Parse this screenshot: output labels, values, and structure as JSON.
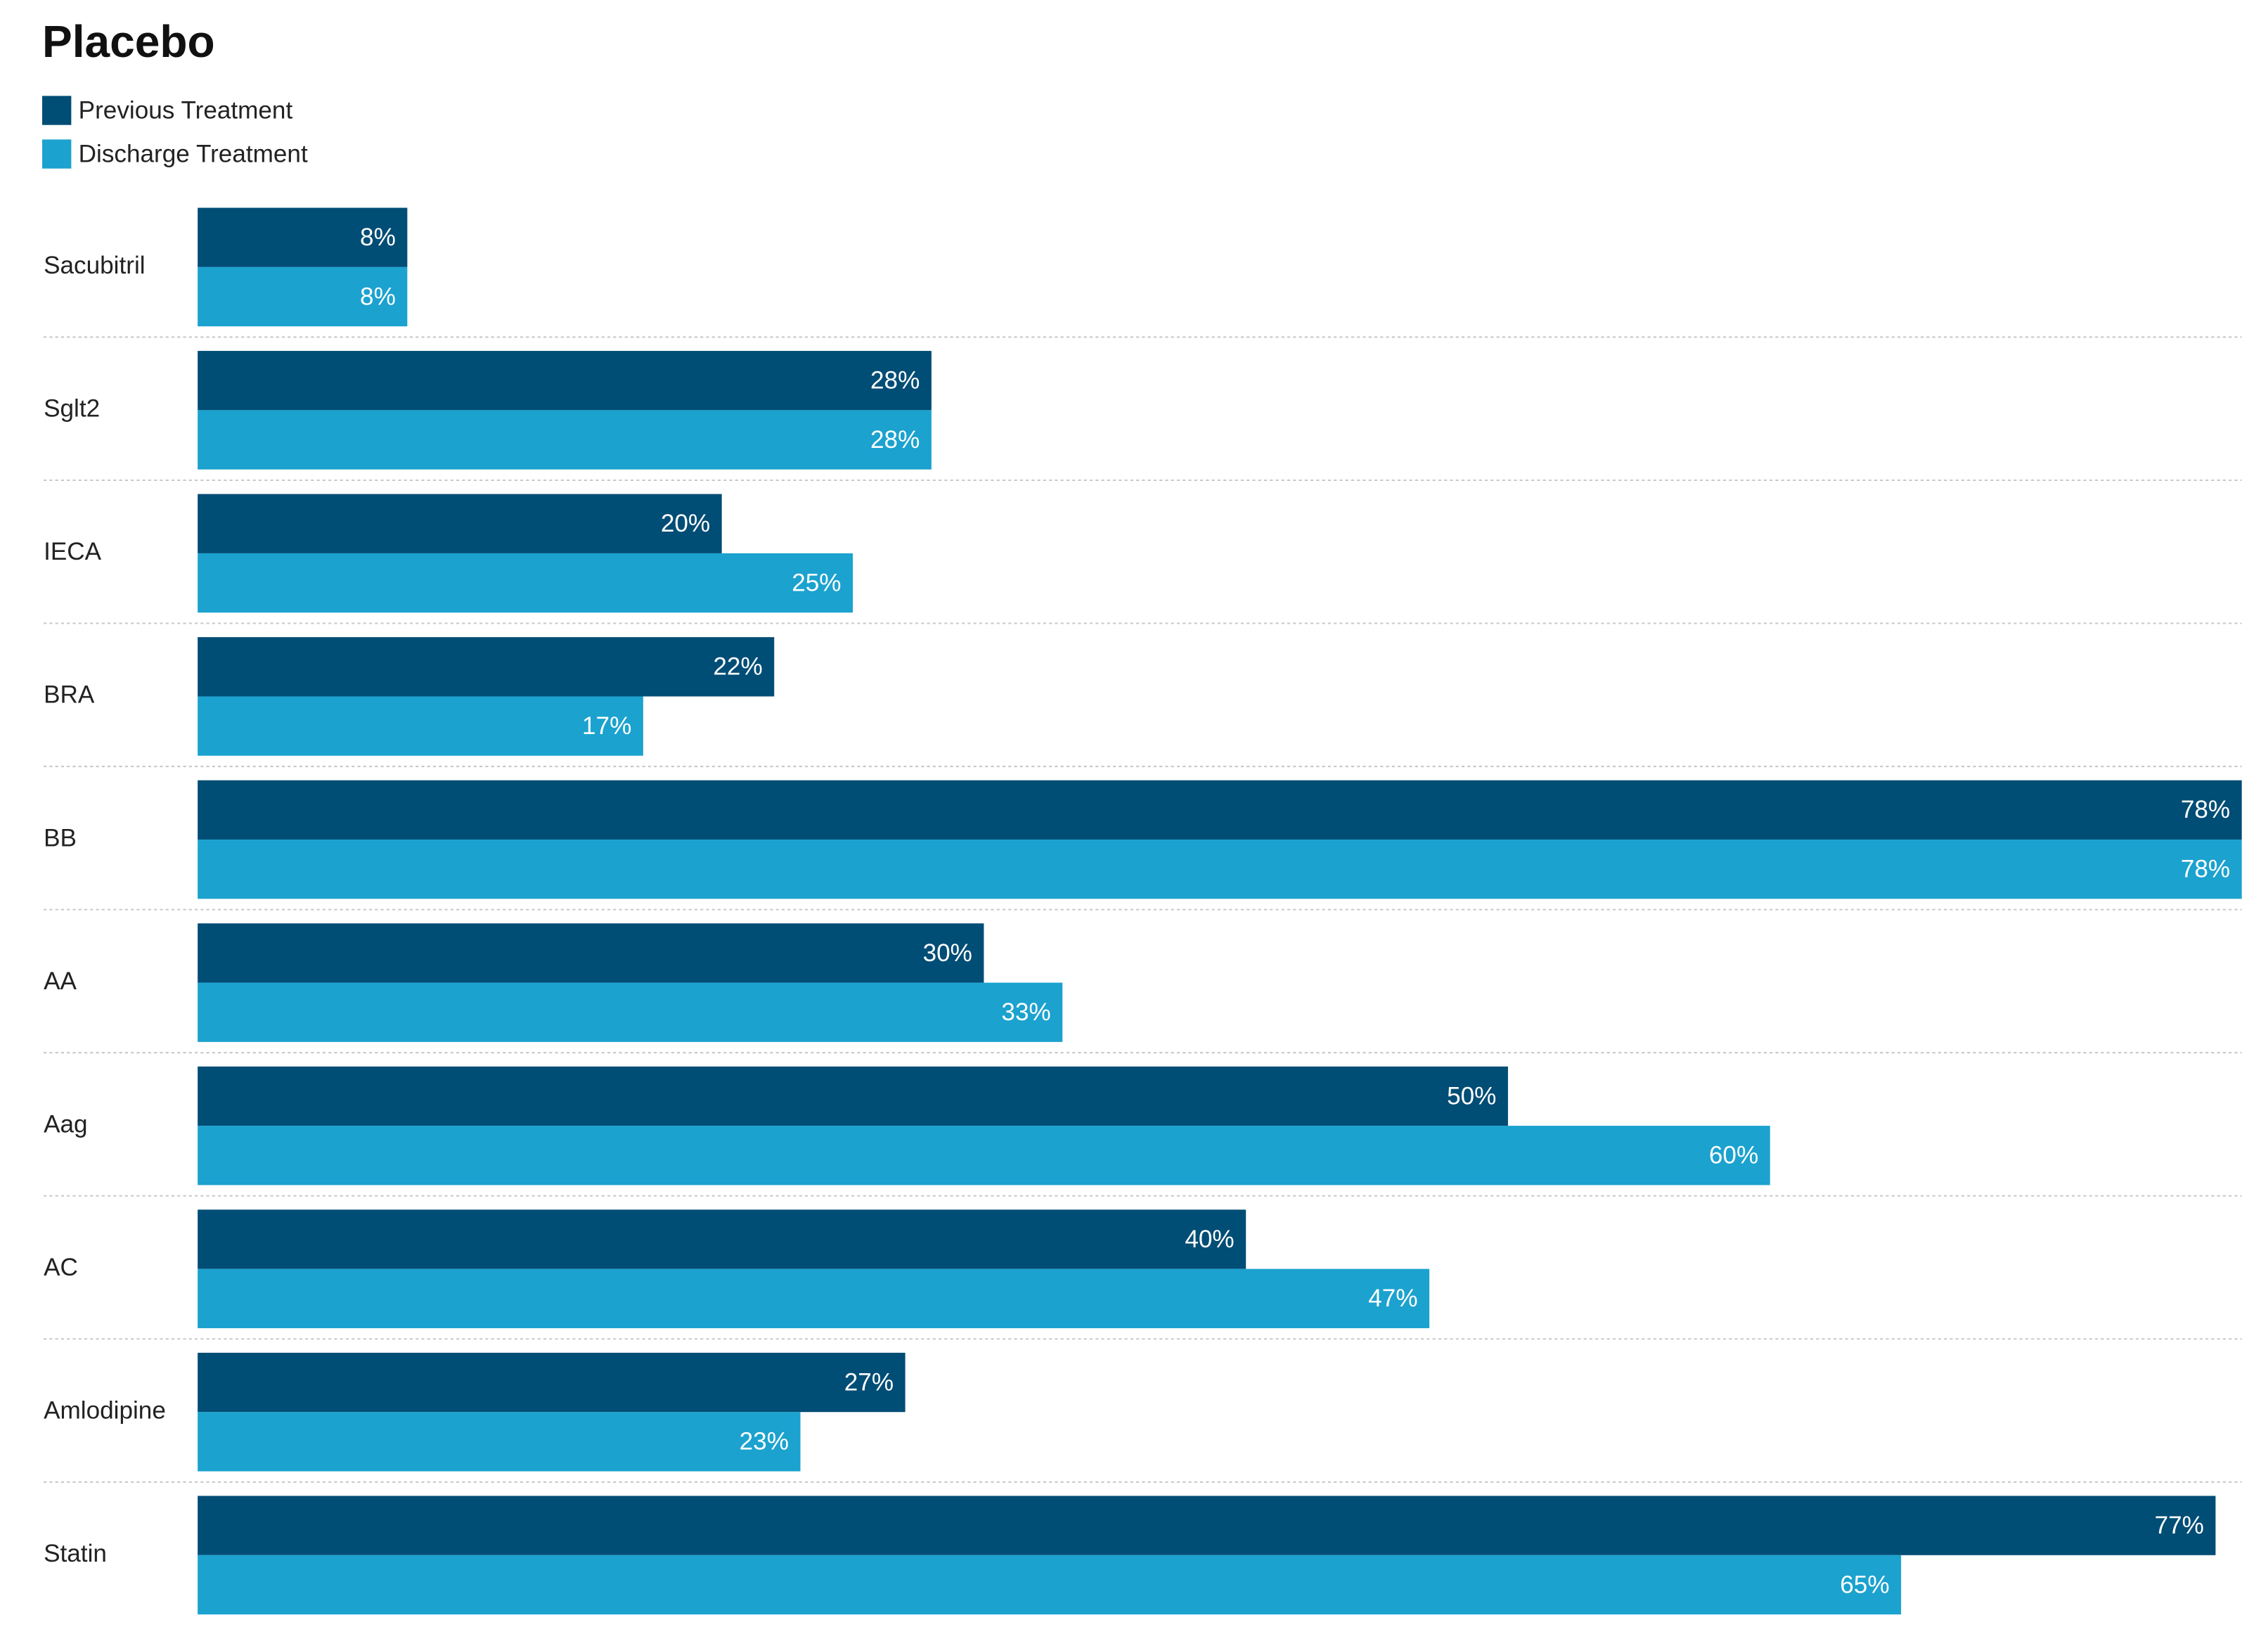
{
  "chart_data": {
    "type": "bar",
    "orientation": "horizontal",
    "title": "Placebo",
    "categories": [
      "Sacubitril",
      "Sglt2",
      "IECA",
      "BRA",
      "BB",
      "AA",
      "Aag",
      "AC",
      "Amlodipine",
      "Statin"
    ],
    "series": [
      {
        "name": "Previous Treatment",
        "color": "#004d75",
        "values": [
          8,
          28,
          20,
          22,
          78,
          30,
          50,
          40,
          27,
          77
        ],
        "value_labels": [
          "8%",
          "28%",
          "20%",
          "22%",
          "78%",
          "30%",
          "50%",
          "40%",
          "27%",
          "77%"
        ]
      },
      {
        "name": "Discharge Treatment",
        "color": "#1ba2cf",
        "values": [
          8,
          28,
          25,
          17,
          78,
          33,
          60,
          47,
          23,
          65
        ],
        "value_labels": [
          "8%",
          "28%",
          "25%",
          "17%",
          "78%",
          "33%",
          "60%",
          "47%",
          "23%",
          "65%"
        ]
      }
    ],
    "xlim": [
      0,
      78
    ],
    "legend": "top-left"
  }
}
